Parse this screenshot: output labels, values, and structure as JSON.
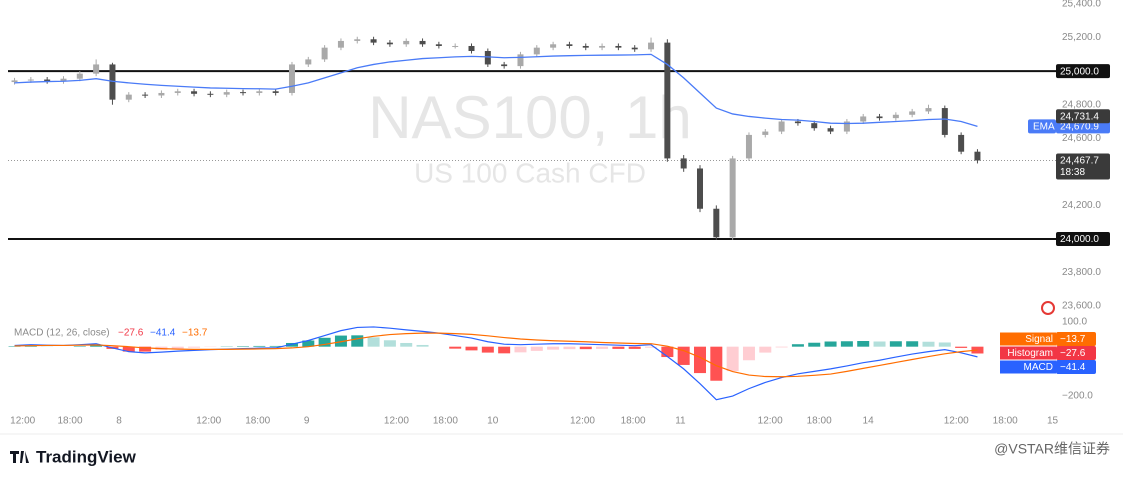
{
  "chart_data": [
    {
      "type": "candlestick",
      "title": "NAS100, 1h",
      "subtitle": "US 100 Cash CFD",
      "open": [
        24935,
        24945,
        24950,
        24940,
        24955,
        24985,
        25040,
        24830,
        24860,
        24855,
        24870,
        24880,
        24865,
        24860,
        24875,
        24870,
        24880,
        24870,
        25040,
        25070,
        25140,
        25180,
        25190,
        25170,
        25160,
        25180,
        25160,
        25150,
        25150,
        25120,
        25040,
        25030,
        25100,
        25140,
        25160,
        25150,
        25140,
        25150,
        25140,
        25130,
        25170,
        24480,
        24420,
        24180,
        24010,
        24480,
        24620,
        24640,
        24700,
        24690,
        24660,
        24640,
        24700,
        24730,
        24720,
        24740,
        24760,
        24780,
        24620,
        24520
      ],
      "high": [
        24960,
        24965,
        24965,
        24970,
        25000,
        25070,
        25050,
        24875,
        24875,
        24885,
        24895,
        24895,
        24880,
        24890,
        24890,
        24895,
        24895,
        25055,
        25085,
        25155,
        25195,
        25205,
        25205,
        25185,
        25195,
        25195,
        25175,
        25165,
        25165,
        25135,
        25055,
        25115,
        25155,
        25175,
        25175,
        25165,
        25165,
        25165,
        25155,
        25200,
        25190,
        24500,
        24440,
        24200,
        24495,
        24635,
        24655,
        24715,
        24715,
        24705,
        24675,
        24715,
        24745,
        24745,
        24755,
        24775,
        24800,
        24795,
        24635,
        24535
      ],
      "low": [
        24920,
        24930,
        24925,
        24925,
        24940,
        24970,
        24800,
        24815,
        24840,
        24840,
        24855,
        24850,
        24845,
        24845,
        24855,
        24855,
        24855,
        24855,
        25025,
        25055,
        25125,
        25165,
        25155,
        25145,
        25145,
        25145,
        25135,
        25135,
        25105,
        25025,
        25015,
        25015,
        25085,
        25125,
        25135,
        25125,
        25125,
        25125,
        25115,
        25115,
        24460,
        24400,
        24160,
        23995,
        23995,
        24465,
        24605,
        24625,
        24675,
        24645,
        24625,
        24625,
        24685,
        24705,
        24705,
        24725,
        24745,
        24605,
        24505,
        24450
      ],
      "close": [
        24945,
        24950,
        24940,
        24955,
        24985,
        25040,
        24830,
        24860,
        24855,
        24870,
        24880,
        24865,
        24860,
        24875,
        24870,
        24880,
        24870,
        25040,
        25070,
        25140,
        25180,
        25190,
        25170,
        25160,
        25180,
        25160,
        25150,
        25150,
        25120,
        25040,
        25030,
        25100,
        25140,
        25160,
        25150,
        25140,
        25150,
        25140,
        25130,
        25170,
        24480,
        24420,
        24180,
        24010,
        24480,
        24620,
        24640,
        24700,
        24690,
        24660,
        24640,
        24700,
        24730,
        24720,
        24740,
        24760,
        24780,
        24620,
        24520,
        24467.7
      ],
      "up_color": "#a9a9a9",
      "down_color": "#4d4d4d",
      "series": [
        {
          "name": "EMA",
          "color": "#4a7bf7",
          "last_label": "24,670.9",
          "values": [
            24930,
            24935,
            24938,
            24940,
            24945,
            24955,
            24940,
            24930,
            24922,
            24915,
            24910,
            24905,
            24900,
            24898,
            24896,
            24895,
            24893,
            24910,
            24930,
            24960,
            24990,
            25020,
            25040,
            25055,
            25065,
            25075,
            25080,
            25085,
            25088,
            25085,
            25080,
            25082,
            25086,
            25090,
            25092,
            25094,
            25095,
            25096,
            25097,
            25100,
            25040,
            24960,
            24870,
            24780,
            24745,
            24730,
            24720,
            24712,
            24708,
            24700,
            24690,
            24688,
            24690,
            24695,
            24700,
            24705,
            24712,
            24715,
            24700,
            24670.9
          ]
        }
      ],
      "last_price_label": "24,467.7",
      "countdown": "18:38",
      "price_label": {
        "value": 24731.4,
        "label": "24,731.4"
      },
      "hlines": [
        {
          "value": 25000,
          "label": "25,000.0"
        },
        {
          "value": 24000,
          "label": "24,000.0"
        }
      ],
      "ylim": [
        23520,
        25424
      ],
      "yticks": [
        {
          "value": 25400,
          "label": "25,400.0"
        },
        {
          "value": 25200,
          "label": "25,200.0"
        },
        {
          "value": 24800,
          "label": "24,800.0"
        },
        {
          "value": 24600,
          "label": "24,600.0"
        },
        {
          "value": 24200,
          "label": "24,200.0"
        },
        {
          "value": 23800,
          "label": "23,800.0"
        },
        {
          "value": 23600,
          "label": "23,600.0"
        }
      ],
      "xlim": [
        -0.4,
        63.2
      ],
      "xticks": [
        {
          "value": 0.5,
          "label": "12:00"
        },
        {
          "value": 3.4,
          "label": "18:00"
        },
        {
          "value": 6.4,
          "label": "8"
        },
        {
          "value": 11.9,
          "label": "12:00"
        },
        {
          "value": 14.9,
          "label": "18:00"
        },
        {
          "value": 17.9,
          "label": "9"
        },
        {
          "value": 23.4,
          "label": "12:00"
        },
        {
          "value": 26.4,
          "label": "18:00"
        },
        {
          "value": 29.3,
          "label": "10"
        },
        {
          "value": 34.8,
          "label": "12:00"
        },
        {
          "value": 37.9,
          "label": "18:00"
        },
        {
          "value": 40.8,
          "label": "11"
        },
        {
          "value": 46.3,
          "label": "12:00"
        },
        {
          "value": 49.3,
          "label": "18:00"
        },
        {
          "value": 52.3,
          "label": "14"
        },
        {
          "value": 57.7,
          "label": "12:00"
        },
        {
          "value": 60.7,
          "label": "18:00"
        },
        {
          "value": 63.6,
          "label": "15"
        }
      ]
    },
    {
      "type": "macd",
      "title": "MACD (12, 26, close)",
      "series": [
        {
          "name": "Histogram",
          "last_label": "−27.6",
          "colors": {
            "grow_above": "#26a69a",
            "fall_above": "#b2dfdb",
            "grow_below": "#ffcdd2",
            "fall_below": "#ff5252"
          },
          "badge_color": "#f23645",
          "values": [
            2,
            4,
            1,
            0,
            2,
            5,
            -9,
            -20,
            -20,
            -14,
            -8,
            -4,
            -1,
            1,
            2,
            3,
            3,
            15,
            25,
            36,
            45,
            46,
            38,
            26,
            15,
            7,
            0,
            -8,
            -15,
            -24,
            -27,
            -23,
            -17,
            -12,
            -10,
            -10,
            -9,
            -9,
            -9,
            -4,
            -42,
            -74,
            -107,
            -138,
            -99,
            -55,
            -24,
            -3,
            10,
            16,
            21,
            22,
            23,
            21,
            22,
            22,
            20,
            17,
            -5,
            -27.6
          ]
        },
        {
          "name": "MACD",
          "color": "#2962ff",
          "last_label": "−41.4",
          "values": [
            5,
            8,
            6,
            5,
            8,
            12,
            -5,
            -20,
            -25,
            -22,
            -18,
            -15,
            -12,
            -10,
            -8,
            -6,
            -5,
            10,
            25,
            45,
            65,
            78,
            80,
            75,
            68,
            62,
            55,
            45,
            35,
            20,
            10,
            8,
            10,
            12,
            12,
            10,
            8,
            6,
            4,
            8,
            -40,
            -90,
            -150,
            -215,
            -200,
            -170,
            -145,
            -125,
            -110,
            -100,
            -90,
            -78,
            -65,
            -55,
            -42,
            -30,
            -20,
            -12,
            -25,
            -41.4
          ]
        },
        {
          "name": "Signal",
          "color": "#ff6d00",
          "last_label": "−13.7",
          "values": [
            3,
            4,
            5,
            5,
            6,
            7,
            4,
            0,
            -5,
            -8,
            -10,
            -11,
            -11,
            -11,
            -10,
            -9,
            -8,
            -5,
            0,
            9,
            20,
            32,
            42,
            49,
            53,
            55,
            55,
            53,
            50,
            44,
            37,
            31,
            27,
            24,
            22,
            20,
            17,
            15,
            13,
            12,
            2,
            -16,
            -43,
            -77,
            -101,
            -115,
            -121,
            -122,
            -120,
            -116,
            -111,
            -100,
            -88,
            -76,
            -64,
            -52,
            -40,
            -29,
            -20,
            -13.7
          ]
        }
      ],
      "ylim": [
        -255,
        130
      ],
      "yticks": [
        {
          "value": 100,
          "label": "100.0"
        },
        {
          "value": -200,
          "label": "−200.0"
        }
      ]
    }
  ],
  "brand": "TradingView",
  "credit": "@VSTAR维信证券"
}
